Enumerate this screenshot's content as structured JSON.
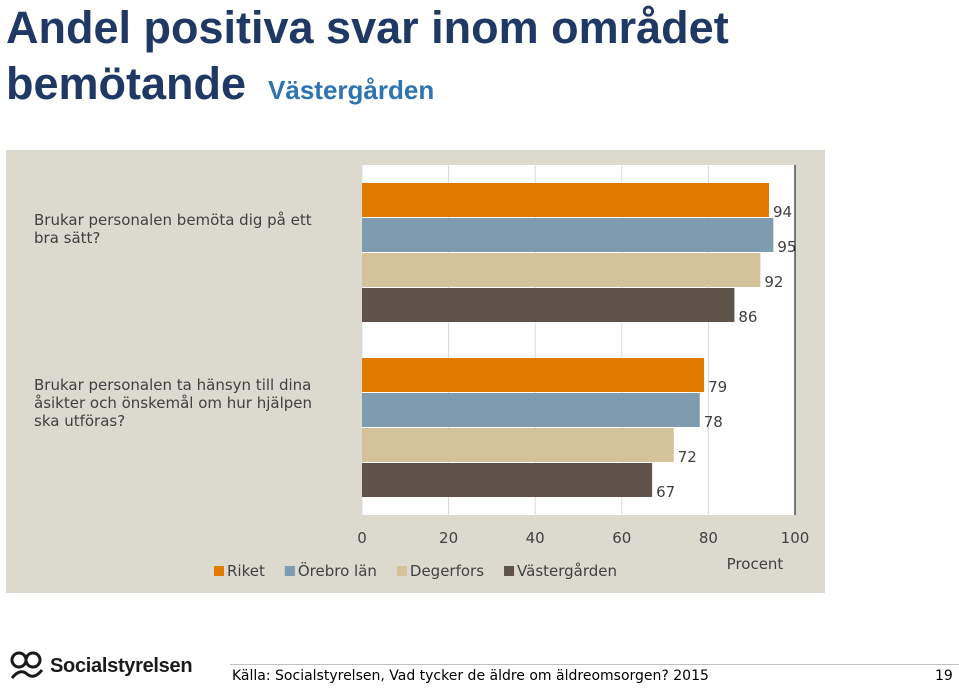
{
  "page": {
    "title_line1": "Andel positiva svar inom området",
    "title_line2": "bemötande",
    "subtitle": "Västergården",
    "source": "Källa: Socialstyrelsen, Vad tycker de äldre om äldreomsorgen? 2015",
    "page_number": "19",
    "logo_text": "Socialstyrelsen"
  },
  "chart_data": {
    "type": "bar",
    "orientation": "horizontal",
    "categories": [
      "Brukar personalen bemöta dig på ett bra sätt?",
      "Brukar personalen ta hänsyn till dina åsikter och önskemål om hur hjälpen ska utföras?"
    ],
    "series": [
      {
        "name": "Riket",
        "color": "#e07b00",
        "values": [
          94,
          79
        ]
      },
      {
        "name": "Örebro län",
        "color": "#7f9bb0",
        "values": [
          95,
          78
        ]
      },
      {
        "name": "Degerfors",
        "color": "#d3c29a",
        "values": [
          92,
          72
        ]
      },
      {
        "name": "Västergården",
        "color": "#5e524a",
        "values": [
          86,
          67
        ]
      }
    ],
    "xlim": [
      0,
      100
    ],
    "xticks": [
      "0",
      "20",
      "40",
      "60",
      "80",
      "100"
    ],
    "xlabel": "Procent",
    "legend_position": "bottom"
  }
}
